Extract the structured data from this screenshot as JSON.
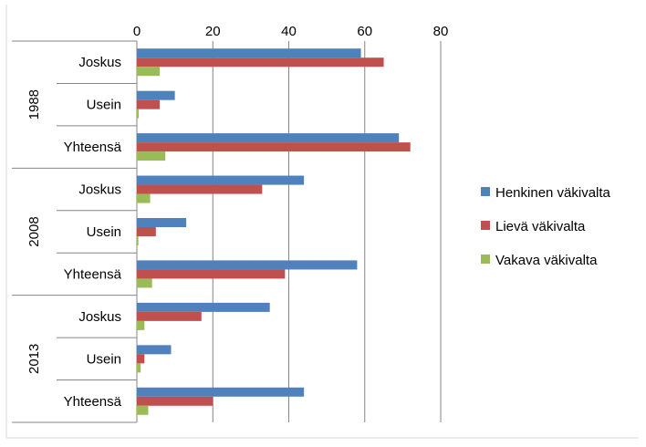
{
  "chart_data": {
    "type": "bar",
    "orientation": "horizontal",
    "xlim": [
      0,
      80
    ],
    "x_ticks": [
      0,
      20,
      40,
      60,
      80
    ],
    "x_axis_position": "top",
    "grid": true,
    "legend_position": "right",
    "groups": [
      {
        "label": "1988",
        "categories": [
          "Joskus",
          "Usein",
          "Yhteensä"
        ]
      },
      {
        "label": "2008",
        "categories": [
          "Joskus",
          "Usein",
          "Yhteensä"
        ]
      },
      {
        "label": "2013",
        "categories": [
          "Joskus",
          "Usein",
          "Yhteensä"
        ]
      }
    ],
    "series": [
      {
        "name": "Henkinen väkivalta",
        "color": "#4F81BD",
        "values": [
          59,
          10,
          69,
          44,
          13,
          58,
          35,
          9,
          44
        ]
      },
      {
        "name": "Lievä väkivalta",
        "color": "#C0504D",
        "values": [
          65,
          6,
          72,
          33,
          5,
          39,
          17,
          2,
          20
        ]
      },
      {
        "name": "Vakava väkivalta",
        "color": "#9BBB59",
        "values": [
          6,
          0.5,
          7.5,
          3.5,
          0.4,
          4,
          2,
          1,
          3
        ]
      }
    ]
  }
}
